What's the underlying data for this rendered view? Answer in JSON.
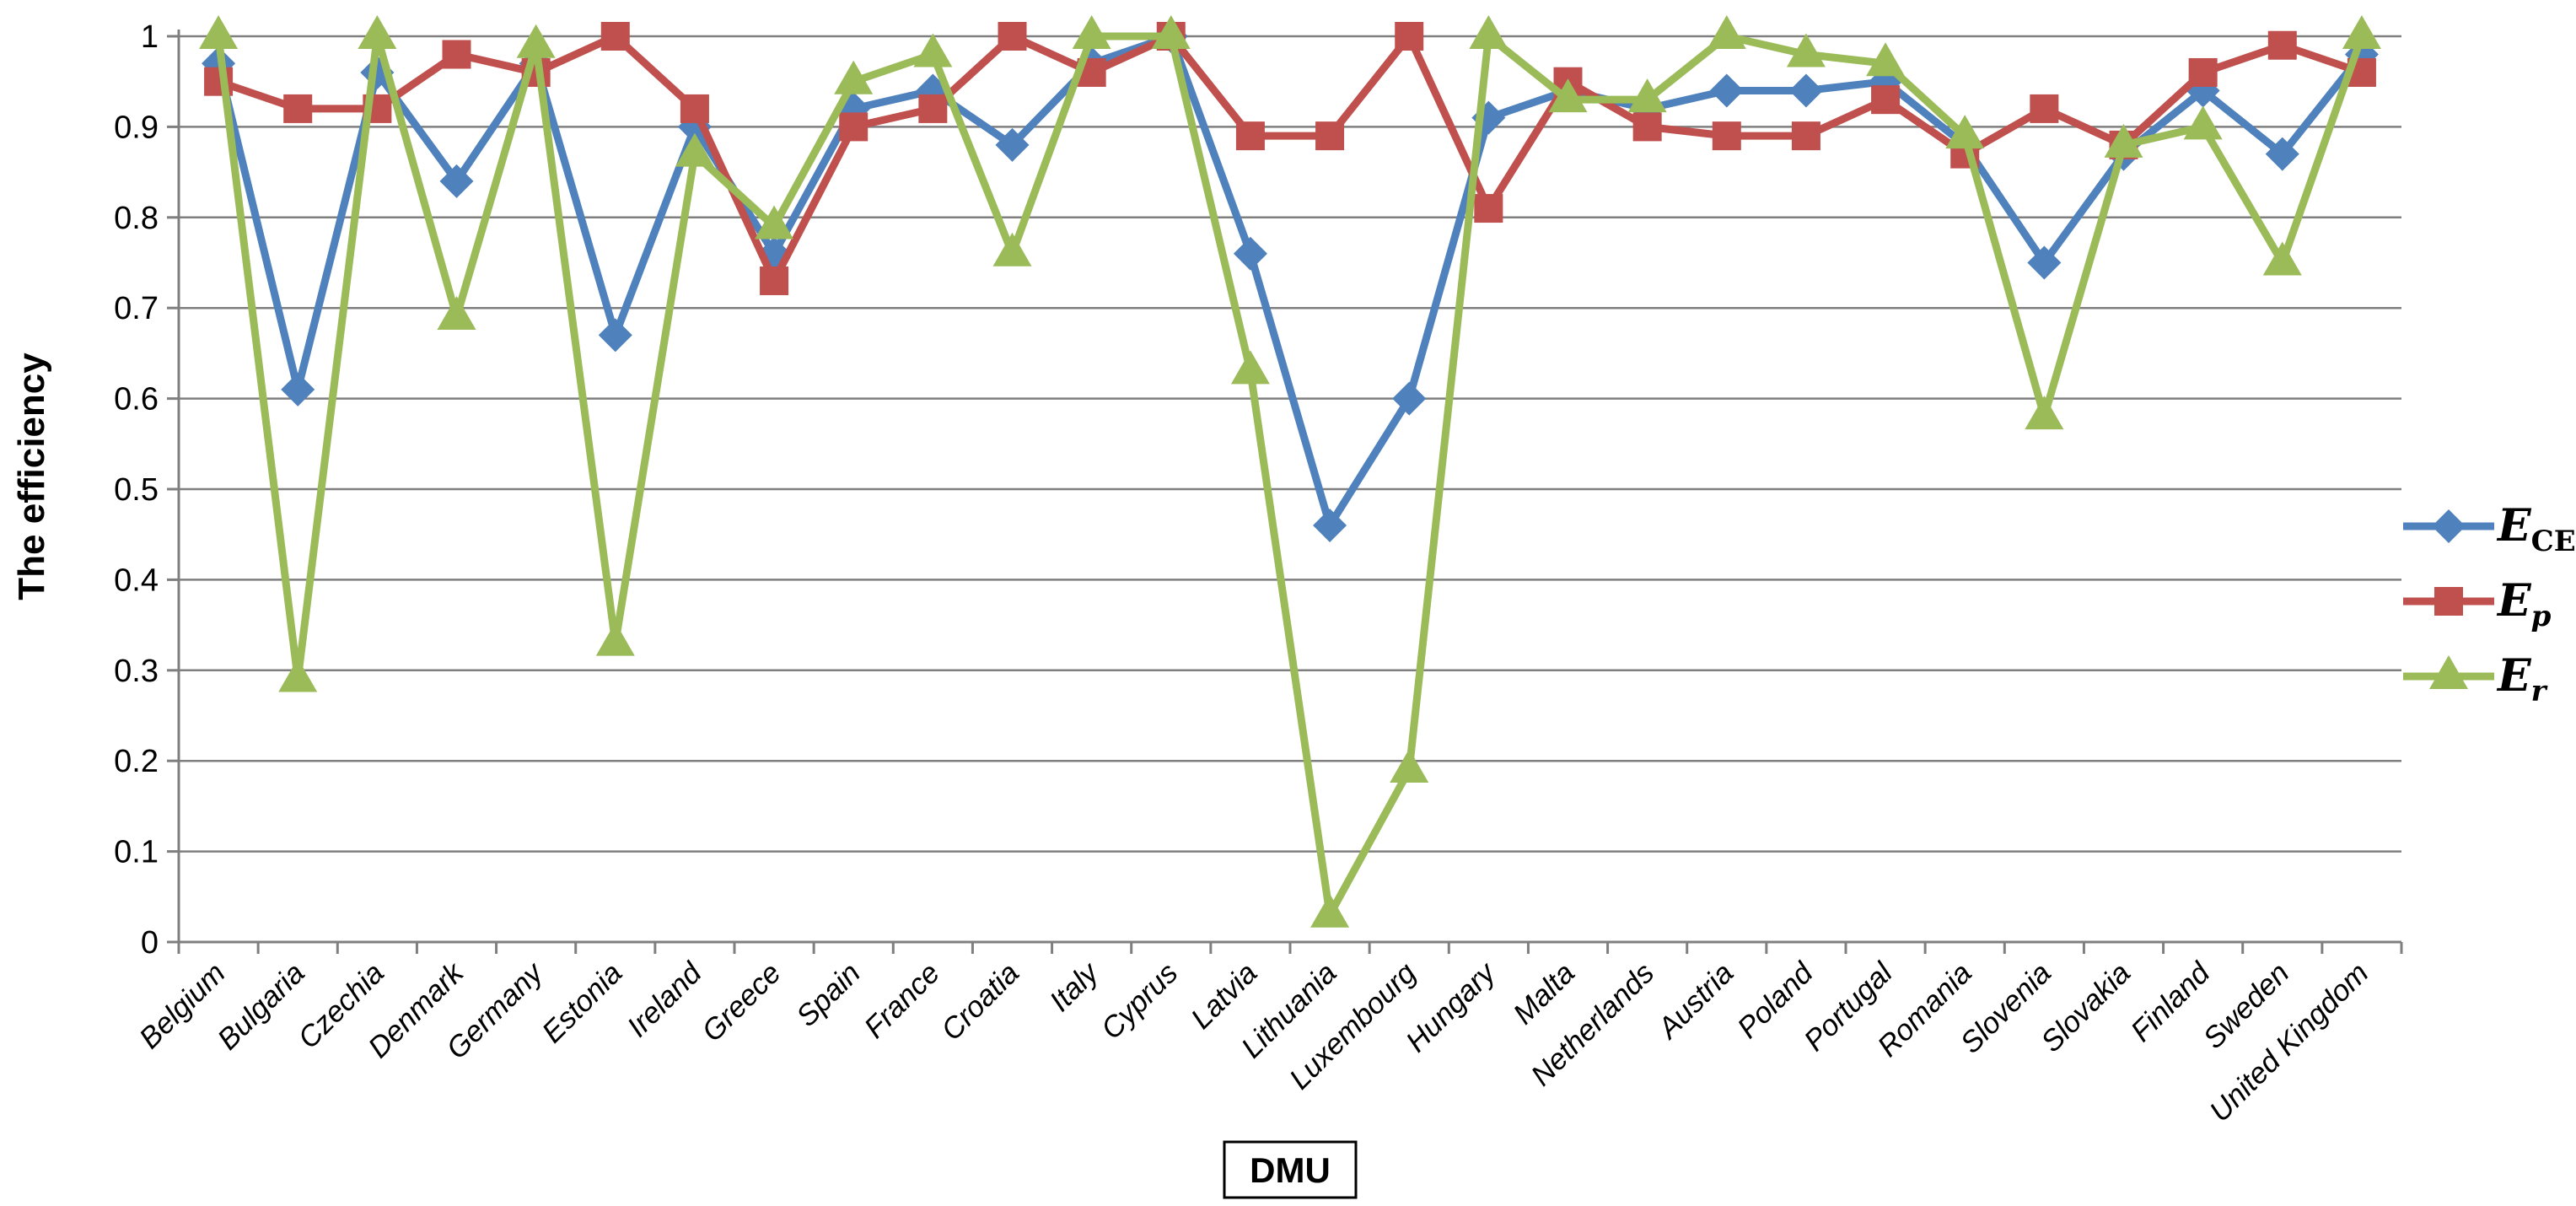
{
  "chart_data": {
    "type": "line",
    "title": "",
    "xlabel": "DMU",
    "ylabel": "The efficiency",
    "ylim": [
      0,
      1
    ],
    "ytick_step": 0.1,
    "ytick_labels": [
      "0",
      "0.1",
      "0.2",
      "0.3",
      "0.4",
      "0.5",
      "0.6",
      "0.7",
      "0.8",
      "0.9",
      "1"
    ],
    "grid": true,
    "legend_position": "right",
    "categories": [
      "Belgium",
      "Bulgaria",
      "Czechia",
      "Denmark",
      "Germany",
      "Estonia",
      "Ireland",
      "Greece",
      "Spain",
      "France",
      "Croatia",
      "Italy",
      "Cyprus",
      "Latvia",
      "Lithuania",
      "Luxembourg",
      "Hungary",
      "Malta",
      "Netherlands",
      "Austria",
      "Poland",
      "Portugal",
      "Romania",
      "Slovenia",
      "Slovakia",
      "Finland",
      "Sweden",
      "United Kingdom"
    ],
    "series": [
      {
        "label_main": "E",
        "label_sub": "CE",
        "sub_italic": false,
        "marker": "diamond",
        "color": "#4F81BD",
        "values": [
          0.97,
          0.61,
          0.96,
          0.84,
          0.97,
          0.67,
          0.9,
          0.76,
          0.92,
          0.94,
          0.88,
          0.97,
          1.0,
          0.76,
          0.46,
          0.6,
          0.91,
          0.94,
          0.92,
          0.94,
          0.94,
          0.95,
          0.88,
          0.75,
          0.87,
          0.94,
          0.87,
          0.98
        ]
      },
      {
        "label_main": "E",
        "label_sub": "p",
        "sub_italic": true,
        "marker": "square",
        "color": "#C0504D",
        "values": [
          0.95,
          0.92,
          0.92,
          0.98,
          0.96,
          1.0,
          0.92,
          0.73,
          0.9,
          0.92,
          1.0,
          0.96,
          1.0,
          0.89,
          0.89,
          1.0,
          0.81,
          0.95,
          0.9,
          0.89,
          0.89,
          0.93,
          0.87,
          0.92,
          0.88,
          0.96,
          0.99,
          0.96
        ]
      },
      {
        "label_main": "E",
        "label_sub": "r",
        "sub_italic": true,
        "marker": "triangle",
        "color": "#9BBB59",
        "values": [
          1.0,
          0.29,
          1.0,
          0.69,
          0.99,
          0.33,
          0.87,
          0.79,
          0.95,
          0.98,
          0.76,
          1.0,
          1.0,
          0.63,
          0.03,
          0.19,
          1.0,
          0.93,
          0.93,
          1.0,
          0.98,
          0.97,
          0.89,
          0.58,
          0.88,
          0.9,
          0.75,
          1.0
        ]
      }
    ],
    "axis_color": "#7F7F7F",
    "gridline_color": "#7F7F7F"
  }
}
